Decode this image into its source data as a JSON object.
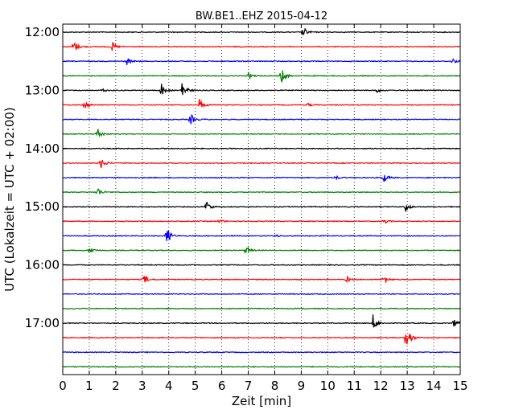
{
  "chart_data": {
    "type": "line",
    "title": "BW.BE1..EHZ 2015-04-12",
    "xlabel": "Zeit  [min]",
    "ylabel": "UTC (Lokalzeit = UTC + 02:00)",
    "xlim": [
      0,
      15
    ],
    "x_ticks": [
      "0",
      "1",
      "2",
      "3",
      "4",
      "5",
      "6",
      "7",
      "8",
      "9",
      "10",
      "11",
      "12",
      "13",
      "14",
      "15"
    ],
    "y_tick_labels": [
      "12:00",
      "13:00",
      "14:00",
      "15:00",
      "16:00",
      "17:00"
    ],
    "grid": "vertical dotted",
    "color_cycle": [
      "#000000",
      "#ff0000",
      "#0000ff",
      "#007f00"
    ],
    "traces": [
      {
        "time": "12:00",
        "color": "#000000",
        "events": [
          {
            "t": 9.05,
            "amp": 0.6
          }
        ]
      },
      {
        "time": "12:15",
        "color": "#ff0000",
        "events": [
          {
            "t": 0.4,
            "amp": 0.75
          },
          {
            "t": 1.85,
            "amp": 0.45
          }
        ]
      },
      {
        "time": "12:30",
        "color": "#0000ff",
        "events": [
          {
            "t": 2.4,
            "amp": 0.35
          },
          {
            "t": 14.7,
            "amp": 0.25
          }
        ]
      },
      {
        "time": "12:45",
        "color": "#007f00",
        "events": [
          {
            "t": 7.0,
            "amp": 0.3
          },
          {
            "t": 8.25,
            "amp": 0.7
          }
        ]
      },
      {
        "time": "13:00",
        "color": "#000000",
        "events": [
          {
            "t": 1.5,
            "amp": 0.15
          },
          {
            "t": 3.7,
            "amp": 0.7
          },
          {
            "t": 4.5,
            "amp": 0.9
          },
          {
            "t": 11.8,
            "amp": 0.25
          }
        ]
      },
      {
        "time": "13:15",
        "color": "#ff0000",
        "events": [
          {
            "t": 0.8,
            "amp": 0.45
          },
          {
            "t": 5.15,
            "amp": 0.6
          },
          {
            "t": 9.2,
            "amp": 0.2
          }
        ]
      },
      {
        "time": "13:30",
        "color": "#0000ff",
        "events": [
          {
            "t": 4.8,
            "amp": 0.65
          }
        ]
      },
      {
        "time": "13:45",
        "color": "#007f00",
        "events": [
          {
            "t": 1.3,
            "amp": 0.65
          }
        ]
      },
      {
        "time": "14:00",
        "color": "#000000",
        "events": []
      },
      {
        "time": "14:15",
        "color": "#ff0000",
        "events": [
          {
            "t": 1.45,
            "amp": 0.55
          }
        ]
      },
      {
        "time": "14:30",
        "color": "#0000ff",
        "events": [
          {
            "t": 12.1,
            "amp": 0.45
          },
          {
            "t": 10.3,
            "amp": 0.15
          }
        ]
      },
      {
        "time": "14:45",
        "color": "#007f00",
        "events": [
          {
            "t": 1.3,
            "amp": 0.55
          }
        ]
      },
      {
        "time": "15:00",
        "color": "#000000",
        "events": [
          {
            "t": 5.4,
            "amp": 0.65
          },
          {
            "t": 12.9,
            "amp": 0.65
          }
        ]
      },
      {
        "time": "15:15",
        "color": "#ff0000",
        "events": [
          {
            "t": 5.9,
            "amp": 0.2
          },
          {
            "t": 12.1,
            "amp": 0.3
          }
        ]
      },
      {
        "time": "15:30",
        "color": "#0000ff",
        "events": [
          {
            "t": 3.9,
            "amp": 0.95
          },
          {
            "t": 8.0,
            "amp": 0.15
          }
        ]
      },
      {
        "time": "15:45",
        "color": "#007f00",
        "events": [
          {
            "t": 1.0,
            "amp": 0.5
          },
          {
            "t": 6.9,
            "amp": 0.45
          }
        ]
      },
      {
        "time": "16:00",
        "color": "#000000",
        "events": []
      },
      {
        "time": "16:15",
        "color": "#ff0000",
        "events": [
          {
            "t": 3.05,
            "amp": 0.5
          },
          {
            "t": 10.7,
            "amp": 0.3
          },
          {
            "t": 12.1,
            "amp": 0.55
          }
        ]
      },
      {
        "time": "16:30",
        "color": "#0000ff",
        "events": []
      },
      {
        "time": "16:45",
        "color": "#007f00",
        "events": []
      },
      {
        "time": "17:00",
        "color": "#000000",
        "events": [
          {
            "t": 11.7,
            "amp": 0.8
          },
          {
            "t": 14.75,
            "amp": 0.55
          }
        ]
      },
      {
        "time": "17:15",
        "color": "#ff0000",
        "events": [
          {
            "t": 12.95,
            "amp": 1.6
          }
        ]
      },
      {
        "time": "17:30",
        "color": "#0000ff",
        "events": []
      },
      {
        "time": "17:45",
        "color": "#007f00",
        "events": []
      }
    ]
  }
}
